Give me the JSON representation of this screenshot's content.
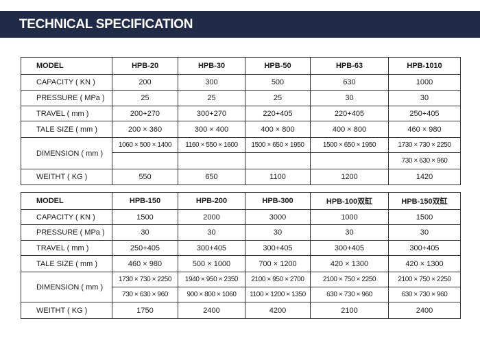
{
  "header": {
    "title": "TECHNICAL SPECIFICATION"
  },
  "labels": {
    "model": "MODEL",
    "capacity": "CAPACITY ( KN )",
    "pressure": "PRESSURE ( MPa )",
    "travel": "TRAVEL ( mm )",
    "tale_size": "TALE SIZE ( mm )",
    "dimension": "DIMENSION ( mm )",
    "weight": "WEITHT ( KG )"
  },
  "table1": {
    "models": [
      "HPB-20",
      "HPB-30",
      "HPB-50",
      "HPB-63",
      "HPB-1010"
    ],
    "capacity": [
      "200",
      "300",
      "500",
      "630",
      "1000"
    ],
    "pressure": [
      "25",
      "25",
      "25",
      "30",
      "30"
    ],
    "travel": [
      "200+270",
      "300+270",
      "220+405",
      "220+405",
      "250+405"
    ],
    "tale_size": [
      "200 × 360",
      "300 × 400",
      "400 × 800",
      "400 × 800",
      "460 × 980"
    ],
    "dimension_1": [
      "1060 × 500 × 1400",
      "1160 × 550 × 1600",
      "1500 × 650 × 1950",
      "1500 × 650 × 1950",
      "1730 × 730 × 2250"
    ],
    "dimension_2": [
      "",
      "",
      "",
      "",
      "730 × 630 × 960"
    ],
    "weight": [
      "550",
      "650",
      "1100",
      "1200",
      "1420"
    ]
  },
  "table2": {
    "models": [
      "HPB-150",
      "HPB-200",
      "HPB-300",
      "HPB-100双缸",
      "HPB-150双缸"
    ],
    "capacity": [
      "1500",
      "2000",
      "3000",
      "1000",
      "1500"
    ],
    "pressure": [
      "30",
      "30",
      "30",
      "30",
      "30"
    ],
    "travel": [
      "250+405",
      "300+405",
      "300+405",
      "300+405",
      "300+405"
    ],
    "tale_size": [
      "460 × 980",
      "500 × 1000",
      "700 × 1200",
      "420 × 1300",
      "420 × 1300"
    ],
    "dimension_1": [
      "1730 × 730 × 2250",
      "1940 × 950 × 2350",
      "2100 × 950 × 2700",
      "2100 × 750 × 2250",
      "2100 × 750 × 2250"
    ],
    "dimension_2": [
      "730 × 630 × 960",
      "900 × 800 × 1060",
      "1100 × 1200 × 1350",
      "630 × 730 × 960",
      "630 × 730 × 960"
    ],
    "weight": [
      "1750",
      "2400",
      "4200",
      "2100",
      "2400"
    ]
  },
  "colors": {
    "header_bg": "#1f2b47",
    "header_text": "#ffffff",
    "border": "#333333"
  }
}
